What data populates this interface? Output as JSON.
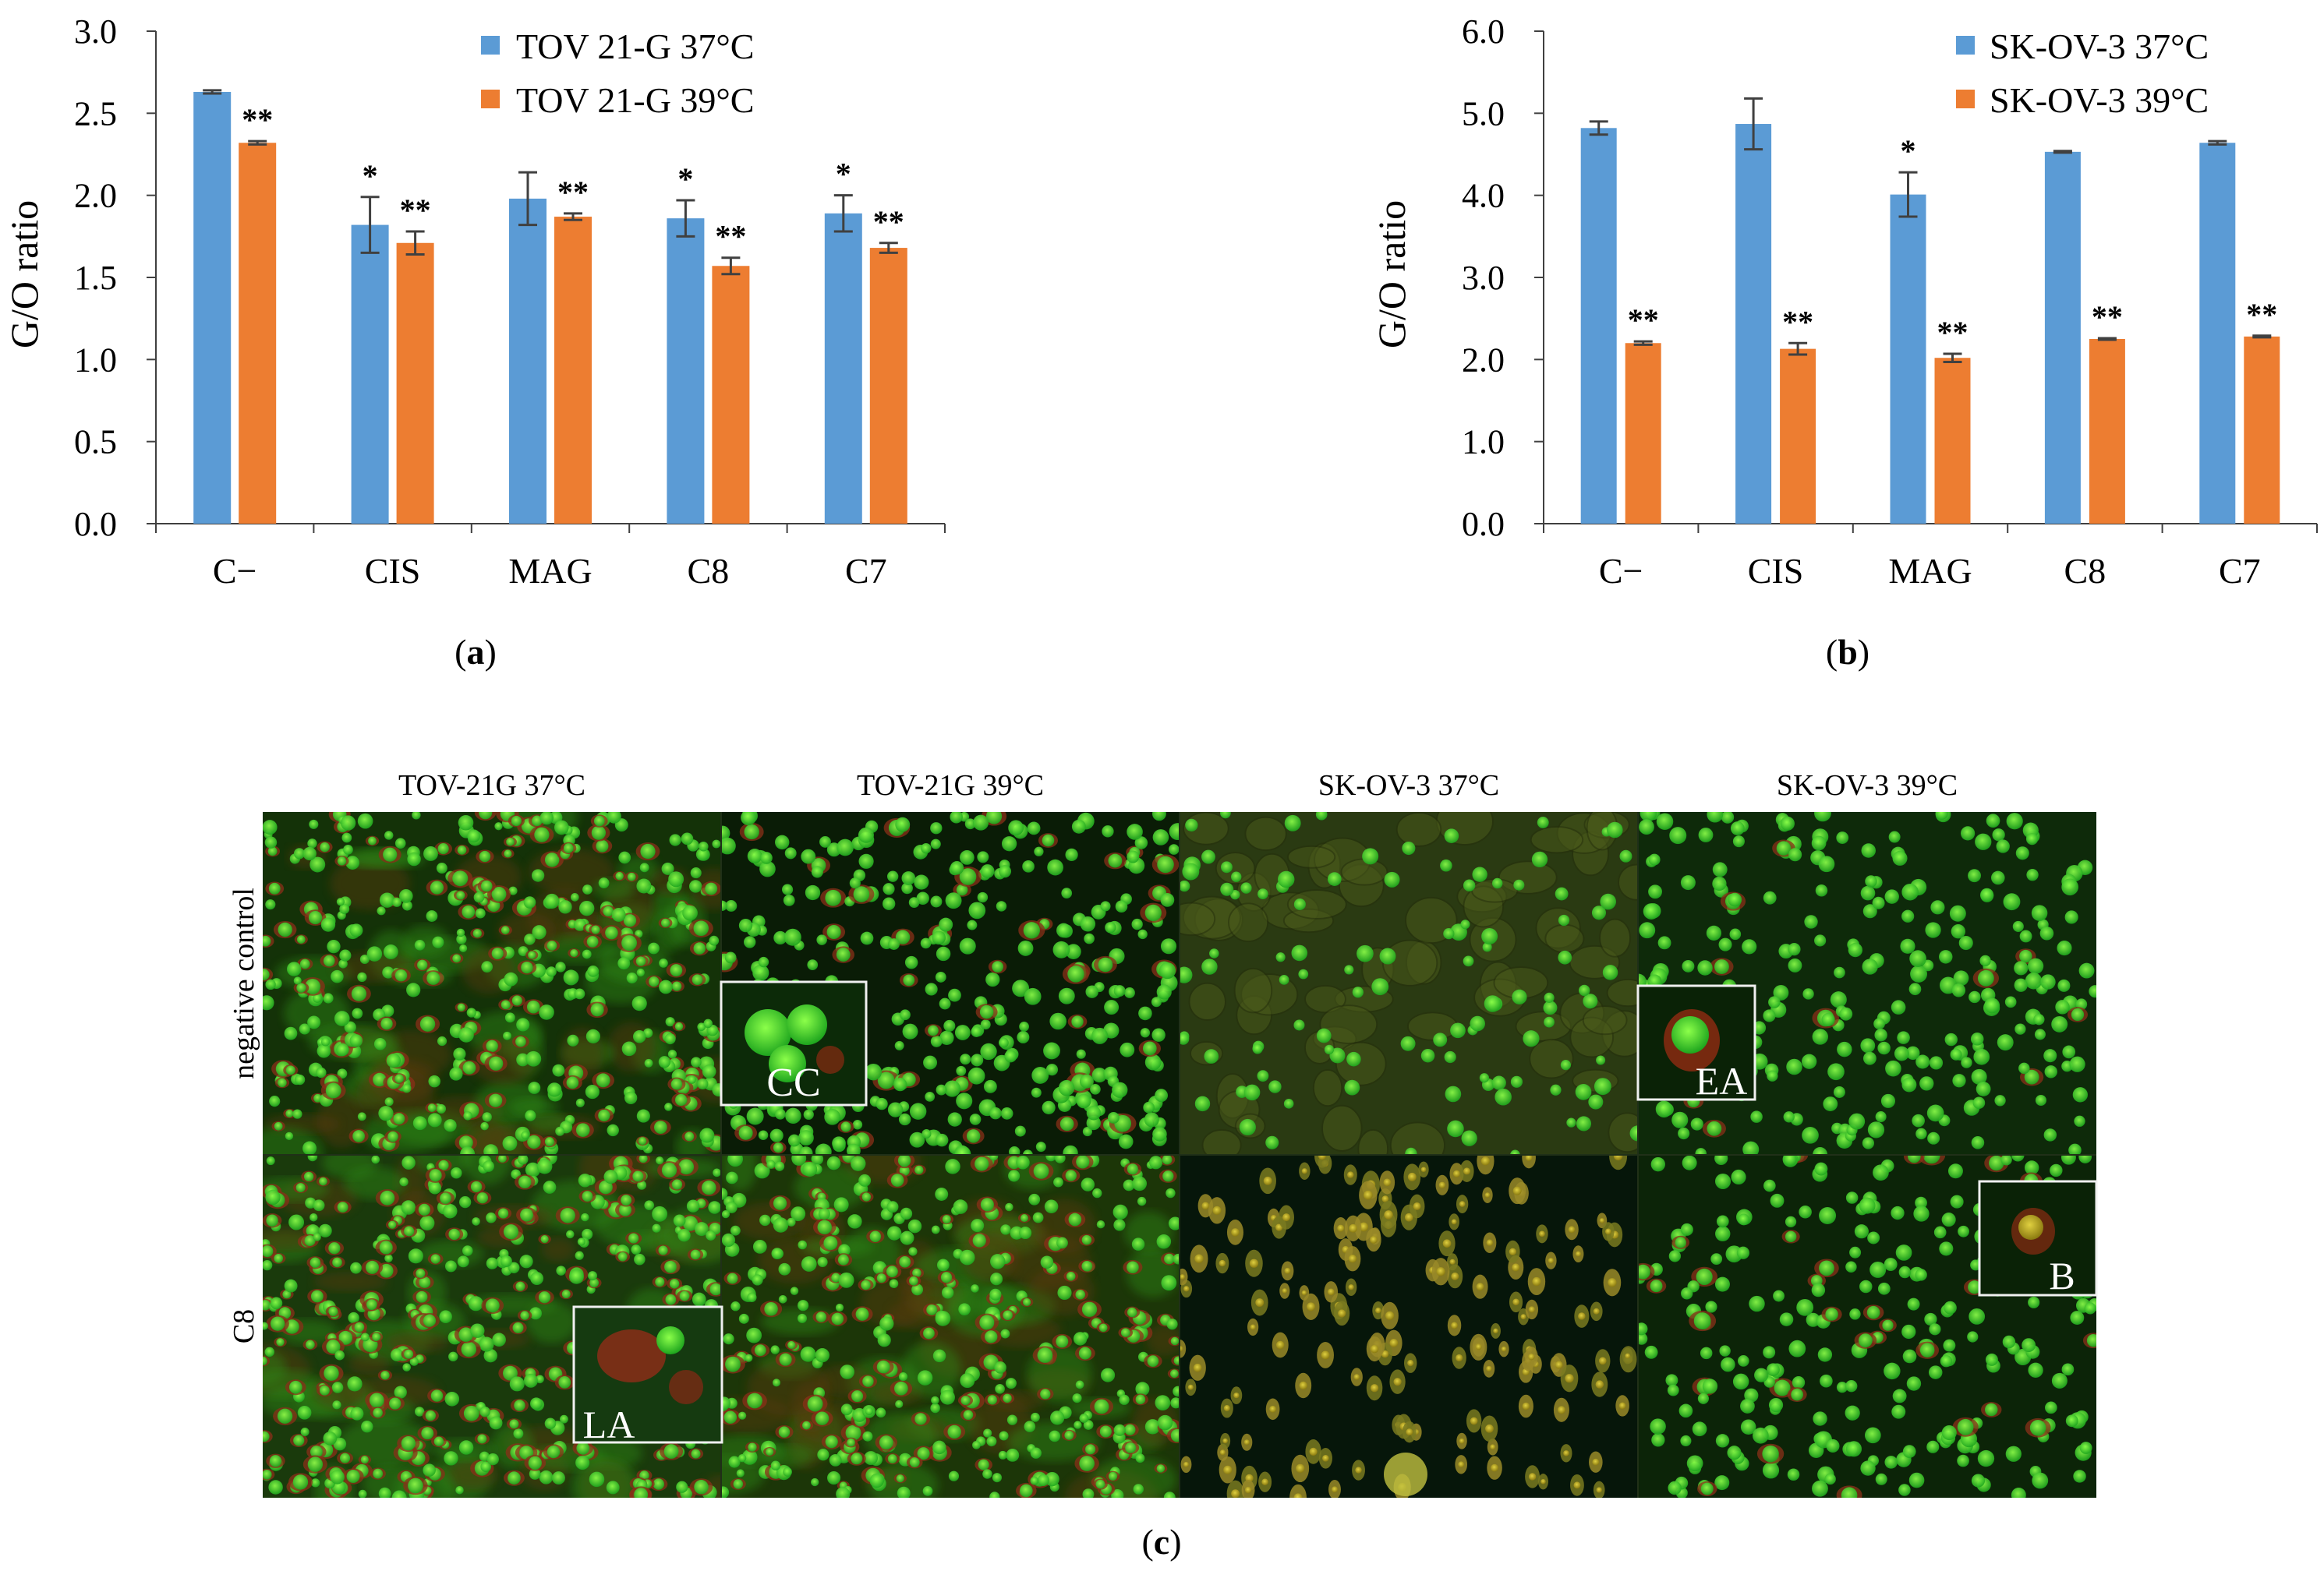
{
  "colors": {
    "blue": "#5B9BD5",
    "orange": "#ED7D31",
    "axis": "#404040",
    "error": "#404040"
  },
  "chart_data": [
    {
      "id": "a",
      "type": "bar",
      "categories": [
        "C−",
        "CIS",
        "MAG",
        "C8",
        "C7"
      ],
      "ylabel": "G/O ratio",
      "xlabel": "",
      "ylim": [
        0,
        3.0
      ],
      "yticks": [
        "0.0",
        "0.5",
        "1.0",
        "1.5",
        "2.0",
        "2.5",
        "3.0"
      ],
      "legend_position": "top-right",
      "series": [
        {
          "name": "TOV 21-G 37°C",
          "color": "#5B9BD5",
          "values": [
            2.63,
            1.82,
            1.98,
            1.86,
            1.89
          ],
          "errors": [
            0.01,
            0.17,
            0.16,
            0.11,
            0.11
          ],
          "marks": [
            "",
            "*",
            "",
            "*",
            "*"
          ]
        },
        {
          "name": "TOV 21-G 39°C",
          "color": "#ED7D31",
          "values": [
            2.32,
            1.71,
            1.87,
            1.57,
            1.68
          ],
          "errors": [
            0.01,
            0.07,
            0.02,
            0.05,
            0.03
          ],
          "marks": [
            "**",
            "**",
            "**",
            "**",
            "**"
          ]
        }
      ]
    },
    {
      "id": "b",
      "type": "bar",
      "categories": [
        "C−",
        "CIS",
        "MAG",
        "C8",
        "C7"
      ],
      "ylabel": "G/O ratio",
      "xlabel": "",
      "ylim": [
        0,
        6.0
      ],
      "yticks": [
        "0.0",
        "1.0",
        "2.0",
        "3.0",
        "4.0",
        "5.0",
        "6.0"
      ],
      "legend_position": "top-right",
      "series": [
        {
          "name": "SK-OV-3 37°C",
          "color": "#5B9BD5",
          "values": [
            4.82,
            4.87,
            4.01,
            4.53,
            4.64
          ],
          "errors": [
            0.08,
            0.31,
            0.27,
            0.01,
            0.02
          ],
          "marks": [
            "",
            "",
            "*",
            "",
            ""
          ]
        },
        {
          "name": "SK-OV-3 39°C",
          "color": "#ED7D31",
          "values": [
            2.2,
            2.13,
            2.02,
            2.25,
            2.28
          ],
          "errors": [
            0.02,
            0.07,
            0.05,
            0.01,
            0.01
          ],
          "marks": [
            "**",
            "**",
            "**",
            "**",
            "**"
          ]
        }
      ]
    }
  ],
  "panel_labels": {
    "a": "a",
    "b": "b",
    "c": "c"
  },
  "micrographs": {
    "column_titles": [
      "TOV-21G 37°C",
      "TOV-21G 39°C",
      "SK-OV-3 37°C",
      "SK-OV-3 39°C"
    ],
    "row_labels": [
      "negative control",
      "C8"
    ],
    "insets": {
      "cc": "CC",
      "ea": "EA",
      "la": "LA",
      "b": "B"
    }
  }
}
